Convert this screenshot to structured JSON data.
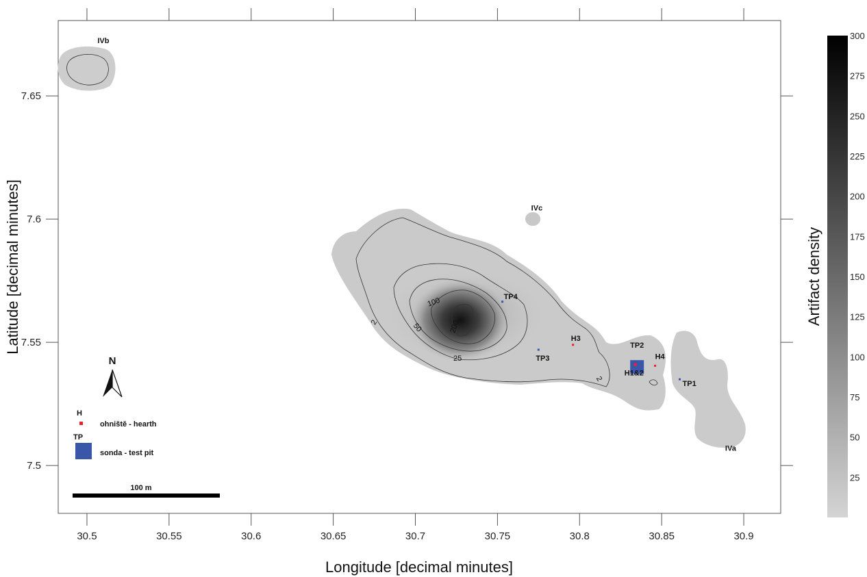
{
  "chart_data": {
    "type": "heatmap",
    "xlabel": "Longitude [decimal minutes]",
    "ylabel": "Latitude [decimal minutes]",
    "x_ticks": [
      "30.5",
      "30.55",
      "30.6",
      "30.65",
      "30.7",
      "30.75",
      "30.8",
      "30.85",
      "30.9"
    ],
    "y_ticks": [
      "7.5",
      "7.55",
      "7.6",
      "7.65"
    ],
    "xlim": [
      30.4825,
      30.9225
    ],
    "ylim": [
      7.4806,
      7.6806
    ],
    "colorbar": {
      "title": "Artifact density",
      "ticks": [
        "25",
        "50",
        "75",
        "100",
        "125",
        "150",
        "175",
        "200",
        "225",
        "250",
        "275",
        "300"
      ],
      "range": [
        0,
        300
      ],
      "colors": [
        "#d4d4d4",
        "#000000"
      ]
    },
    "contour_levels": [
      "2",
      "25",
      "50",
      "100",
      "200"
    ],
    "peak": {
      "lon": 30.725,
      "lat": 7.555
    },
    "site_labels": [
      {
        "text": "IVb",
        "lon": 30.51,
        "lat": 7.6715
      },
      {
        "text": "IVc",
        "lon": 30.774,
        "lat": 7.6035
      },
      {
        "text": "IVa",
        "lon": 30.892,
        "lat": 7.506
      }
    ],
    "features": [
      {
        "id": "TP4",
        "kind": "test pit",
        "lon": 30.753,
        "lat": 7.5665,
        "label": "TP4"
      },
      {
        "id": "TP3",
        "kind": "test pit",
        "lon": 30.775,
        "lat": 7.547,
        "label": "TP3"
      },
      {
        "id": "H3",
        "kind": "hearth",
        "lon": 30.796,
        "lat": 7.549,
        "label": "H3"
      },
      {
        "id": "TP2",
        "kind": "test pit",
        "lon": 30.835,
        "lat": 7.54,
        "label": "TP2"
      },
      {
        "id": "H1&2",
        "kind": "hearth",
        "lon": 30.834,
        "lat": 7.541,
        "label": "H1&2"
      },
      {
        "id": "H4",
        "kind": "hearth",
        "lon": 30.846,
        "lat": 7.5405,
        "label": "H4"
      },
      {
        "id": "TP1",
        "kind": "test pit",
        "lon": 30.861,
        "lat": 7.535,
        "label": "TP1"
      }
    ]
  },
  "legend": {
    "north": "N",
    "hearth_symbol": "H",
    "hearth_text": "ohniště - hearth",
    "pit_symbol": "TP",
    "pit_text": "sonda - test pit",
    "scale_text": "100 m"
  },
  "colors": {
    "hearth": "#e8242b",
    "test_pit": "#3a56a8",
    "low_density": "#cfcfcf",
    "contour": "#333333"
  }
}
